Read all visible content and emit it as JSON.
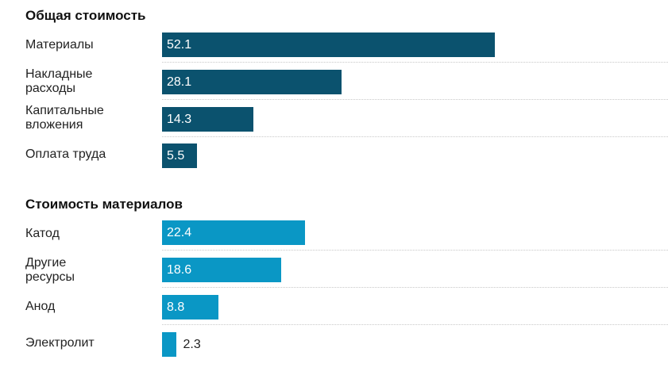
{
  "chart_data": [
    {
      "type": "bar",
      "orientation": "horizontal",
      "title": "Общая стоимость",
      "categories": [
        "Материалы",
        "Накладные\nрасходы",
        "Капитальные\nвложения",
        "Оплата труда"
      ],
      "values": [
        52.1,
        28.1,
        14.3,
        5.5
      ],
      "value_labels": [
        "52.1",
        "28.1",
        "14.3",
        "5.5"
      ],
      "color": "#0b526e",
      "xlim": [
        0,
        100
      ]
    },
    {
      "type": "bar",
      "orientation": "horizontal",
      "title": "Стоимость материалов",
      "categories": [
        "Катод",
        "Другие\nресурсы",
        "Анод",
        "Электролит"
      ],
      "values": [
        22.4,
        18.6,
        8.8,
        2.3
      ],
      "value_labels": [
        "22.4",
        "18.6",
        "8.8",
        "2.3"
      ],
      "color": "#0a97c5",
      "xlim": [
        0,
        100
      ]
    }
  ]
}
